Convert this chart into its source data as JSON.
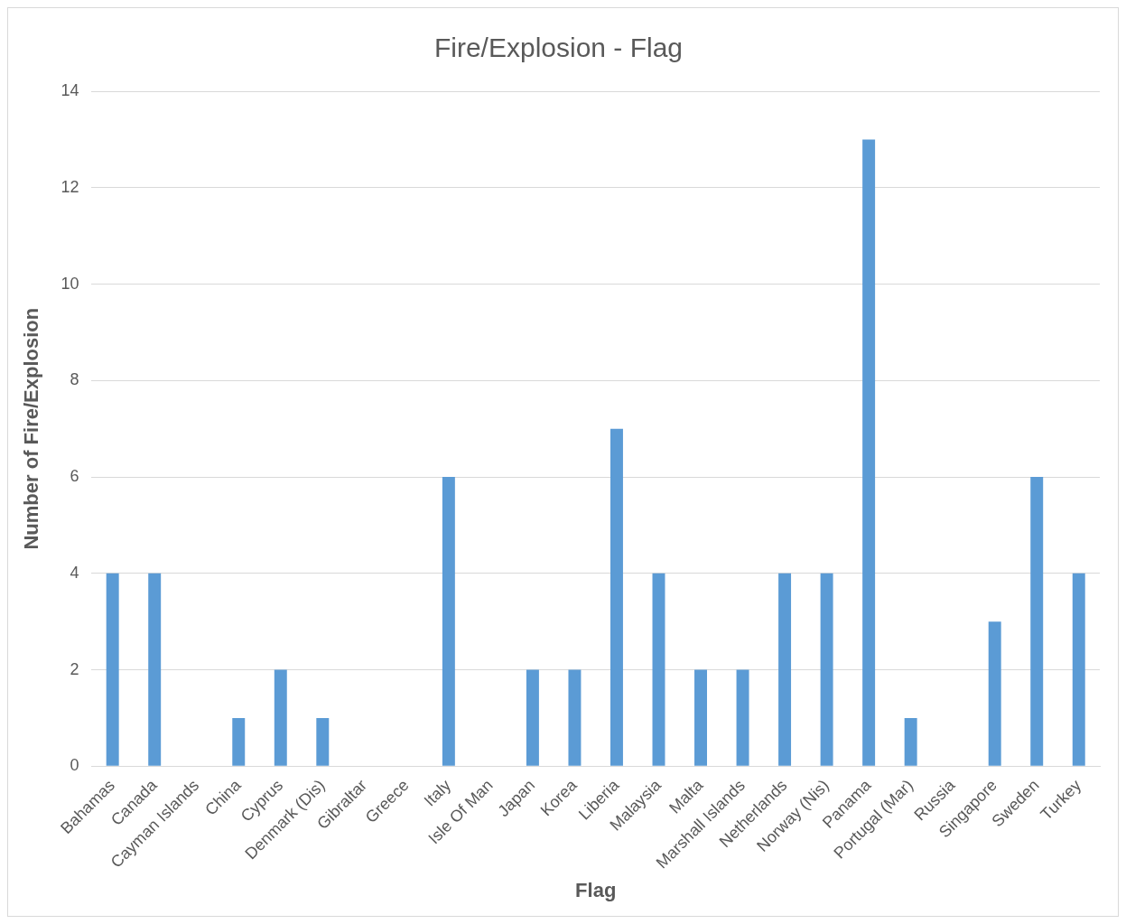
{
  "chart_data": {
    "type": "bar",
    "title": "Fire/Explosion - Flag",
    "xlabel": "Flag",
    "ylabel": "Number of Fire/Explosion",
    "categories": [
      "Bahamas",
      "Canada",
      "Cayman Islands",
      "China",
      "Cyprus",
      "Denmark (Dis)",
      "Gibraltar",
      "Greece",
      "Italy",
      "Isle Of Man",
      "Japan",
      "Korea",
      "Liberia",
      "Malaysia",
      "Malta",
      "Marshall Islands",
      "Netherlands",
      "Norway (Nis)",
      "Panama",
      "Portugal (Mar)",
      "Russia",
      "Singapore",
      "Sweden",
      "Turkey"
    ],
    "values": [
      4,
      4,
      0,
      1,
      2,
      1,
      0,
      0,
      6,
      0,
      2,
      2,
      7,
      4,
      2,
      2,
      4,
      4,
      13,
      1,
      0,
      3,
      6,
      4
    ],
    "color": "#5b9bd5",
    "ylim": [
      0,
      14
    ],
    "yticks": [
      0,
      2,
      4,
      6,
      8,
      10,
      12,
      14
    ],
    "grid": "y",
    "legend": false
  }
}
